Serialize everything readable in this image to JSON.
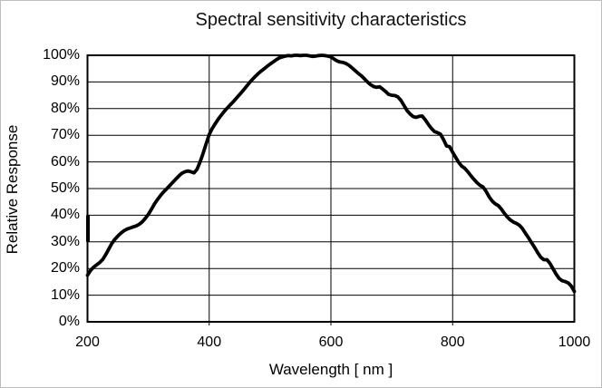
{
  "chart_data": {
    "type": "line",
    "title": "Spectral sensitivity characteristics",
    "xlabel": "Wavelength [ nm ]",
    "ylabel": "Relative Response",
    "xlim": [
      200,
      1000
    ],
    "ylim": [
      0,
      100
    ],
    "x_ticks": [
      200,
      400,
      600,
      800,
      1000
    ],
    "y_ticks": [
      0,
      10,
      20,
      30,
      40,
      50,
      60,
      70,
      80,
      90,
      100
    ],
    "y_tick_suffix": "%",
    "grid": true,
    "legend_position": "none",
    "line_color": "#000000",
    "grid_color": "#000000",
    "background_color": "#ffffff",
    "left_axis_thick_segment_pct": [
      30,
      40
    ],
    "series": [
      {
        "name": "Relative response",
        "points": [
          [
            200,
            17.5
          ],
          [
            205,
            19.3
          ],
          [
            210,
            20.5
          ],
          [
            215,
            21.4
          ],
          [
            220,
            22.2
          ],
          [
            225,
            23.4
          ],
          [
            230,
            25.2
          ],
          [
            235,
            27.3
          ],
          [
            240,
            29.4
          ],
          [
            245,
            31.0
          ],
          [
            250,
            32.2
          ],
          [
            255,
            33.3
          ],
          [
            260,
            34.2
          ],
          [
            265,
            34.8
          ],
          [
            270,
            35.2
          ],
          [
            275,
            35.6
          ],
          [
            280,
            36.0
          ],
          [
            285,
            36.6
          ],
          [
            290,
            37.5
          ],
          [
            295,
            38.8
          ],
          [
            300,
            40.3
          ],
          [
            305,
            42.2
          ],
          [
            310,
            44.2
          ],
          [
            315,
            45.9
          ],
          [
            320,
            47.4
          ],
          [
            325,
            48.7
          ],
          [
            330,
            49.9
          ],
          [
            335,
            51.1
          ],
          [
            340,
            52.3
          ],
          [
            345,
            53.5
          ],
          [
            350,
            54.7
          ],
          [
            355,
            55.7
          ],
          [
            360,
            56.3
          ],
          [
            365,
            56.6
          ],
          [
            370,
            56.3
          ],
          [
            375,
            55.9
          ],
          [
            380,
            57.2
          ],
          [
            385,
            60.0
          ],
          [
            390,
            63.2
          ],
          [
            395,
            66.8
          ],
          [
            400,
            70.3
          ],
          [
            405,
            72.6
          ],
          [
            410,
            74.4
          ],
          [
            415,
            76.1
          ],
          [
            420,
            77.6
          ],
          [
            425,
            79.0
          ],
          [
            430,
            80.3
          ],
          [
            435,
            81.5
          ],
          [
            440,
            82.7
          ],
          [
            445,
            84.0
          ],
          [
            450,
            85.3
          ],
          [
            455,
            86.6
          ],
          [
            460,
            88.0
          ],
          [
            465,
            89.4
          ],
          [
            470,
            90.7
          ],
          [
            475,
            91.9
          ],
          [
            480,
            93.0
          ],
          [
            485,
            94.0
          ],
          [
            490,
            94.9
          ],
          [
            495,
            95.8
          ],
          [
            500,
            96.7
          ],
          [
            505,
            97.5
          ],
          [
            510,
            98.3
          ],
          [
            515,
            99.0
          ],
          [
            520,
            99.4
          ],
          [
            525,
            99.7
          ],
          [
            530,
            99.9
          ],
          [
            535,
            99.8
          ],
          [
            540,
            100
          ],
          [
            545,
            100
          ],
          [
            550,
            99.9
          ],
          [
            555,
            100
          ],
          [
            560,
            100
          ],
          [
            565,
            99.8
          ],
          [
            570,
            99.6
          ],
          [
            575,
            99.7
          ],
          [
            580,
            99.9
          ],
          [
            585,
            100
          ],
          [
            590,
            99.9
          ],
          [
            595,
            99.7
          ],
          [
            600,
            99.4
          ],
          [
            605,
            98.6
          ],
          [
            610,
            97.9
          ],
          [
            615,
            97.5
          ],
          [
            620,
            97.3
          ],
          [
            625,
            96.9
          ],
          [
            630,
            96.2
          ],
          [
            635,
            95.2
          ],
          [
            640,
            94.2
          ],
          [
            645,
            93.2
          ],
          [
            650,
            92.3
          ],
          [
            655,
            91.2
          ],
          [
            660,
            90.0
          ],
          [
            665,
            89.0
          ],
          [
            670,
            88.3
          ],
          [
            675,
            88.0
          ],
          [
            680,
            88.2
          ],
          [
            685,
            87.3
          ],
          [
            690,
            86.4
          ],
          [
            695,
            85.3
          ],
          [
            700,
            85.0
          ],
          [
            705,
            84.9
          ],
          [
            710,
            84.4
          ],
          [
            715,
            83.1
          ],
          [
            720,
            81.2
          ],
          [
            725,
            79.3
          ],
          [
            730,
            78.0
          ],
          [
            735,
            77.0
          ],
          [
            740,
            76.7
          ],
          [
            745,
            77.1
          ],
          [
            750,
            77.2
          ],
          [
            755,
            75.8
          ],
          [
            760,
            74.1
          ],
          [
            765,
            72.6
          ],
          [
            770,
            71.4
          ],
          [
            775,
            71.0
          ],
          [
            780,
            70.4
          ],
          [
            785,
            68.4
          ],
          [
            790,
            66.0
          ],
          [
            795,
            65.7
          ],
          [
            800,
            63.6
          ],
          [
            805,
            61.7
          ],
          [
            810,
            59.8
          ],
          [
            815,
            58.4
          ],
          [
            820,
            57.6
          ],
          [
            825,
            56.3
          ],
          [
            830,
            54.8
          ],
          [
            835,
            53.5
          ],
          [
            840,
            52.2
          ],
          [
            845,
            51.2
          ],
          [
            850,
            50.6
          ],
          [
            855,
            48.9
          ],
          [
            860,
            46.9
          ],
          [
            865,
            45.3
          ],
          [
            870,
            44.3
          ],
          [
            875,
            43.6
          ],
          [
            880,
            42.3
          ],
          [
            885,
            40.7
          ],
          [
            890,
            39.3
          ],
          [
            895,
            38.2
          ],
          [
            900,
            37.4
          ],
          [
            905,
            36.9
          ],
          [
            910,
            36.2
          ],
          [
            915,
            34.9
          ],
          [
            920,
            33.1
          ],
          [
            925,
            31.4
          ],
          [
            930,
            29.6
          ],
          [
            935,
            27.8
          ],
          [
            940,
            25.9
          ],
          [
            945,
            24.2
          ],
          [
            950,
            23.3
          ],
          [
            955,
            23.3
          ],
          [
            960,
            21.9
          ],
          [
            965,
            19.9
          ],
          [
            970,
            17.9
          ],
          [
            975,
            16.3
          ],
          [
            980,
            15.4
          ],
          [
            985,
            15.1
          ],
          [
            990,
            14.6
          ],
          [
            995,
            13.4
          ],
          [
            1000,
            11.4
          ]
        ]
      }
    ]
  }
}
